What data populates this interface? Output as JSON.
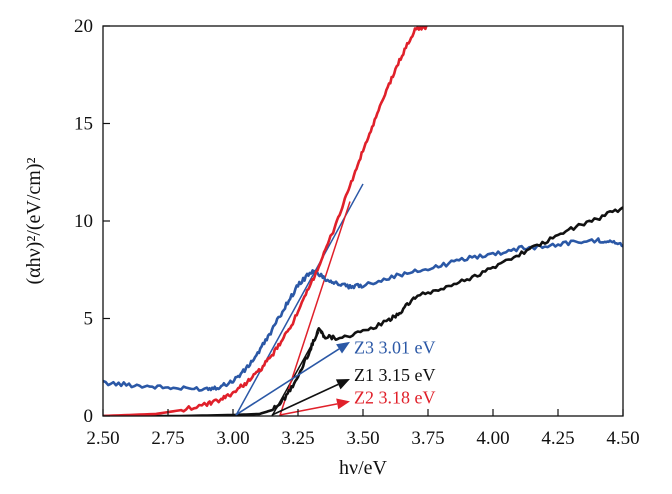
{
  "chart_data": {
    "type": "line",
    "title": "",
    "xlabel": "hν/eV",
    "ylabel": "(αhν)²/(eV/cm)²",
    "xlim": [
      2.5,
      4.5
    ],
    "ylim": [
      0,
      20
    ],
    "xticks": [
      2.5,
      2.75,
      3.0,
      3.25,
      3.5,
      3.75,
      4.0,
      4.25,
      4.5
    ],
    "xtick_labels": [
      "2.50",
      "2.75",
      "3.00",
      "3.25",
      "3.50",
      "3.75",
      "4.00",
      "4.25",
      "4.50"
    ],
    "yticks": [
      0,
      5,
      10,
      15,
      20
    ],
    "ytick_labels": [
      "0",
      "5",
      "10",
      "15",
      "20"
    ],
    "grid": false,
    "legend": "none",
    "series": [
      {
        "key": "z3",
        "color": "#2b58a6",
        "x": [
          2.5,
          2.6,
          2.7,
          2.8,
          2.9,
          2.95,
          3.0,
          3.05,
          3.1,
          3.15,
          3.2,
          3.25,
          3.3,
          3.33,
          3.36,
          3.4,
          3.45,
          3.5,
          3.6,
          3.7,
          3.8,
          3.9,
          4.0,
          4.1,
          4.2,
          4.3,
          4.4,
          4.45,
          4.5
        ],
        "y": [
          1.7,
          1.6,
          1.5,
          1.4,
          1.4,
          1.5,
          1.8,
          2.4,
          3.3,
          4.4,
          5.6,
          6.7,
          7.4,
          7.3,
          7.0,
          6.8,
          6.6,
          6.7,
          7.1,
          7.4,
          7.7,
          8.1,
          8.3,
          8.6,
          8.7,
          8.9,
          9.0,
          9.0,
          8.7
        ]
      },
      {
        "key": "z1",
        "color": "#111111",
        "x": [
          2.5,
          2.8,
          3.0,
          3.1,
          3.15,
          3.2,
          3.25,
          3.3,
          3.33,
          3.35,
          3.4,
          3.5,
          3.6,
          3.65,
          3.7,
          3.8,
          3.9,
          4.0,
          4.1,
          4.2,
          4.3,
          4.4,
          4.5
        ],
        "y": [
          0.0,
          0.0,
          0.05,
          0.1,
          0.3,
          0.9,
          2.0,
          3.5,
          4.5,
          4.1,
          4.0,
          4.3,
          4.9,
          5.4,
          6.1,
          6.5,
          7.0,
          7.6,
          8.3,
          8.9,
          9.6,
          10.1,
          10.7
        ]
      },
      {
        "key": "z2",
        "color": "#e0202a",
        "x": [
          2.5,
          2.7,
          2.8,
          2.9,
          2.95,
          3.0,
          3.05,
          3.1,
          3.15,
          3.2,
          3.25,
          3.3,
          3.35,
          3.4,
          3.45,
          3.5,
          3.55,
          3.6,
          3.65,
          3.7,
          3.75
        ],
        "y": [
          0.0,
          0.1,
          0.3,
          0.6,
          0.8,
          1.2,
          1.7,
          2.3,
          3.1,
          4.1,
          5.3,
          6.8,
          8.3,
          10.0,
          11.8,
          13.6,
          15.3,
          17.0,
          18.5,
          19.8,
          20.0
        ]
      }
    ],
    "tangent_lines": [
      {
        "key": "z3",
        "color": "#2b58a6",
        "x": [
          3.01,
          3.5
        ],
        "y": [
          0,
          11.9
        ]
      },
      {
        "key": "z1",
        "color": "#111111",
        "x": [
          3.15,
          3.33
        ],
        "y": [
          0,
          4.3
        ]
      },
      {
        "key": "z2",
        "color": "#e0202a",
        "x": [
          3.18,
          3.45
        ],
        "y": [
          0,
          11.0
        ]
      }
    ],
    "annotations": [
      {
        "key": "z3",
        "text": "Z3 3.01 eV",
        "color": "#2b58a6",
        "arrow_from": [
          3.01,
          0.05
        ],
        "arrow_to": [
          3.45,
          3.8
        ],
        "text_at": [
          3.45,
          3.3
        ]
      },
      {
        "key": "z1",
        "text": "Z1 3.15 eV",
        "color": "#111111",
        "arrow_from": [
          3.15,
          0.05
        ],
        "arrow_to": [
          3.45,
          1.9
        ],
        "text_at": [
          3.45,
          1.9
        ]
      },
      {
        "key": "z2",
        "text": "Z2 3.18 eV",
        "color": "#e0202a",
        "arrow_from": [
          3.18,
          0.05
        ],
        "arrow_to": [
          3.45,
          0.75
        ],
        "text_at": [
          3.45,
          0.75
        ]
      }
    ]
  }
}
